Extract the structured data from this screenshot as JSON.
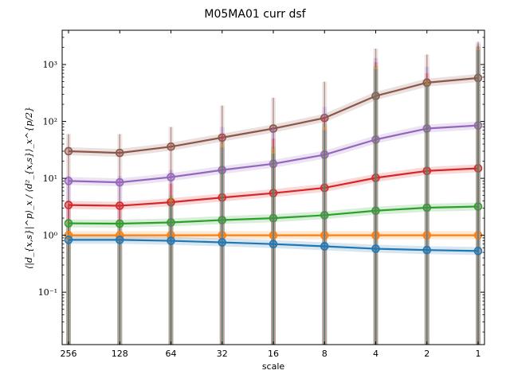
{
  "chart_data": {
    "type": "line",
    "title": "M05MA01 curr dsf",
    "xlabel": "scale",
    "ylabel": "⟨|d_{x,s}|^p⟩_x / ⟨d²_{x,s}⟩_x^{p/2}",
    "x_scale": "log2, reversed",
    "y_scale": "log",
    "x": [
      256,
      128,
      64,
      32,
      16,
      8,
      4,
      2,
      1
    ],
    "x_tick_labels": [
      "256",
      "128",
      "64",
      "32",
      "16",
      "8",
      "4",
      "2",
      "1"
    ],
    "ylim": [
      0.012,
      4000
    ],
    "y_ticks": [
      0.1,
      1,
      10,
      100,
      1000
    ],
    "y_tick_labels": [
      "10⁻¹",
      "10⁰",
      "10¹",
      "10²",
      "10³"
    ],
    "grid": false,
    "series": [
      {
        "color": "#1f77b4",
        "values": [
          0.83,
          0.83,
          0.8,
          0.75,
          0.7,
          0.64,
          0.58,
          0.55,
          0.53
        ],
        "err_low": [
          0.001,
          0.001,
          0.001,
          0.001,
          0.001,
          0.001,
          0.001,
          0.001,
          0.001
        ],
        "err_high": [
          0.8,
          0.8,
          3.7,
          35,
          27,
          70,
          830,
          450,
          1800
        ]
      },
      {
        "color": "#ff7f0e",
        "values": [
          1.0,
          1.0,
          1.0,
          1.0,
          1.0,
          1.0,
          1.0,
          1.0,
          1.0
        ],
        "err_low": [
          0.001,
          0.001,
          0.001,
          0.001,
          0.001,
          0.001,
          0.001,
          0.001,
          0.001
        ],
        "err_high": [
          1.0,
          1.0,
          4.5,
          40,
          33,
          80,
          900,
          500,
          1900
        ]
      },
      {
        "color": "#2ca02c",
        "values": [
          1.62,
          1.6,
          1.68,
          1.85,
          2.0,
          2.25,
          2.7,
          3.05,
          3.2
        ],
        "err_low": [
          0.001,
          0.001,
          0.001,
          0.001,
          0.001,
          0.001,
          0.001,
          0.001,
          0.001
        ],
        "err_high": [
          1.7,
          1.7,
          5,
          45,
          36,
          90,
          950,
          550,
          2000
        ]
      },
      {
        "color": "#d62728",
        "values": [
          3.4,
          3.3,
          3.8,
          4.6,
          5.5,
          6.8,
          10.2,
          13.5,
          15
        ],
        "err_low": [
          0.001,
          0.001,
          0.001,
          0.001,
          0.001,
          0.001,
          0.001,
          0.001,
          0.001
        ],
        "err_high": [
          3.5,
          3.5,
          8,
          60,
          50,
          120,
          1100,
          700,
          2100
        ]
      },
      {
        "color": "#9467bd",
        "values": [
          9,
          8.5,
          10.5,
          14,
          18,
          26,
          48,
          75,
          85
        ],
        "err_low": [
          0.001,
          0.001,
          0.001,
          0.001,
          0.001,
          0.001,
          0.001,
          0.001,
          0.001
        ],
        "err_high": [
          11,
          11,
          14,
          80,
          80,
          180,
          1300,
          900,
          2300
        ]
      },
      {
        "color": "#8c564b",
        "values": [
          30,
          28,
          36,
          52,
          75,
          115,
          280,
          480,
          580
        ],
        "err_low": [
          0.001,
          0.001,
          0.001,
          0.001,
          0.001,
          0.001,
          0.001,
          0.001,
          0.001
        ],
        "err_high": [
          60,
          60,
          80,
          190,
          260,
          500,
          1900,
          1500,
          2500
        ]
      }
    ]
  }
}
